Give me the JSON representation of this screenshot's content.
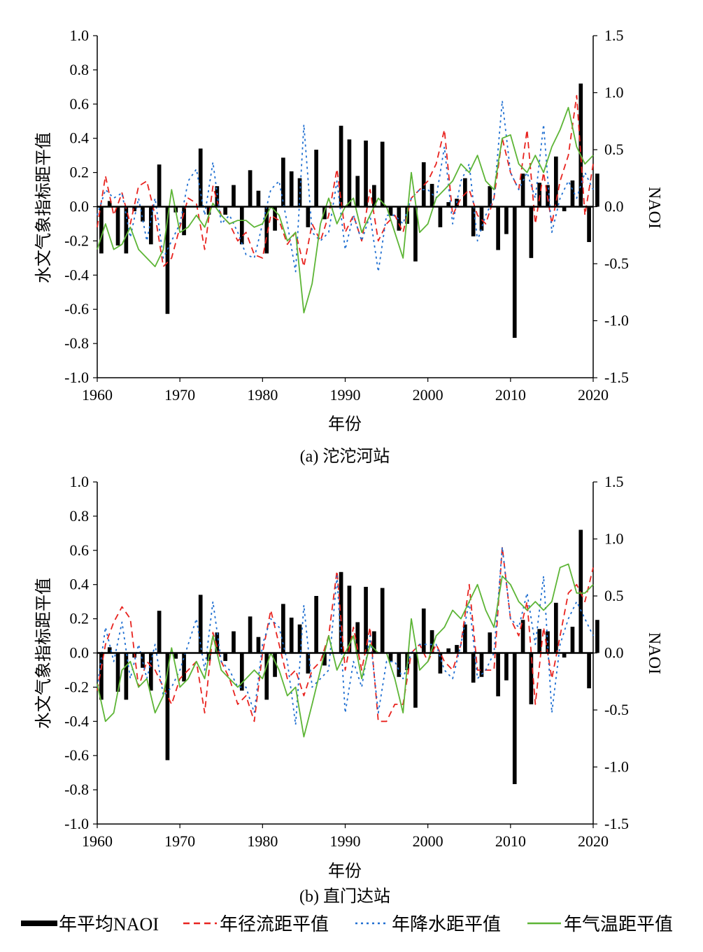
{
  "chart_data": [
    {
      "type": "bar",
      "caption": "(a) 沱沱河站",
      "xlabel": "年份",
      "ylabel": "水文气象指标距平值",
      "y2label": "NAOI",
      "xlim": [
        1960,
        2020
      ],
      "ylim": [
        -1.0,
        1.0
      ],
      "y2lim": [
        -1.5,
        1.5
      ],
      "xticks": [
        "1960",
        "1970",
        "1980",
        "1990",
        "2000",
        "2010",
        "2020"
      ],
      "yticks": [
        "1.0",
        "0.8",
        "0.6",
        "0.4",
        "0.2",
        "0.0",
        "-0.2",
        "-0.4",
        "-0.6",
        "-0.8",
        "-1.0"
      ],
      "y2ticks": [
        "1.5",
        "1.0",
        "0.5",
        "0.0",
        "-0.5",
        "-1.0",
        "-1.5"
      ],
      "grid": false,
      "x": [
        1960,
        1961,
        1962,
        1963,
        1964,
        1965,
        1966,
        1967,
        1968,
        1969,
        1970,
        1971,
        1972,
        1973,
        1974,
        1975,
        1976,
        1977,
        1978,
        1979,
        1980,
        1981,
        1982,
        1983,
        1984,
        1985,
        1986,
        1987,
        1988,
        1989,
        1990,
        1991,
        1992,
        1993,
        1994,
        1995,
        1996,
        1997,
        1998,
        1999,
        2000,
        2001,
        2002,
        2003,
        2004,
        2005,
        2006,
        2007,
        2008,
        2009,
        2010,
        2011,
        2012,
        2013,
        2014,
        2015,
        2016,
        2017,
        2018,
        2019,
        2020
      ],
      "series": [
        {
          "name": "年平均NAOI",
          "axis": "right",
          "type": "bar",
          "color": "#000000",
          "values": [
            -0.41,
            0.05,
            -0.34,
            -0.41,
            -0.04,
            -0.13,
            -0.33,
            0.37,
            -0.94,
            -0.05,
            -0.25,
            0.0,
            0.51,
            -0.07,
            0.18,
            -0.07,
            0.19,
            -0.33,
            0.32,
            0.14,
            -0.41,
            -0.21,
            0.43,
            0.31,
            0.25,
            -0.18,
            0.5,
            -0.11,
            0.0,
            0.71,
            0.59,
            0.27,
            0.58,
            0.19,
            0.57,
            -0.08,
            -0.21,
            -0.15,
            -0.48,
            0.39,
            0.2,
            -0.18,
            0.04,
            0.07,
            0.25,
            -0.26,
            -0.21,
            0.18,
            -0.38,
            -0.24,
            -1.15,
            0.29,
            -0.45,
            0.21,
            0.19,
            0.44,
            -0.04,
            0.23,
            1.08,
            -0.31,
            0.29
          ]
        },
        {
          "name": "年径流距平值",
          "axis": "left",
          "type": "line",
          "style": "dashed",
          "color": "#e8231f",
          "values": [
            -0.12,
            0.18,
            -0.05,
            0.08,
            -0.1,
            0.12,
            0.15,
            -0.05,
            -0.35,
            -0.3,
            -0.12,
            0.05,
            0.02,
            -0.25,
            0.12,
            -0.05,
            -0.1,
            -0.2,
            -0.15,
            -0.28,
            -0.3,
            -0.05,
            -0.08,
            -0.22,
            -0.15,
            -0.35,
            -0.1,
            -0.2,
            -0.05,
            0.22,
            -0.15,
            -0.05,
            -0.2,
            0.1,
            -0.2,
            -0.1,
            -0.05,
            -0.15,
            0.05,
            0.1,
            0.15,
            0.25,
            0.45,
            -0.05,
            0.05,
            0.1,
            -0.05,
            -0.1,
            0.05,
            0.4,
            0.2,
            0.1,
            0.45,
            -0.1,
            0.2,
            -0.1,
            0.15,
            0.3,
            0.65,
            -0.05,
            0.25
          ]
        },
        {
          "name": "年降水距平值",
          "axis": "left",
          "type": "line",
          "style": "dotted",
          "color": "#1f6fd1",
          "values": [
            -0.05,
            0.1,
            0.05,
            0.08,
            -0.18,
            0.05,
            -0.2,
            0.05,
            -0.3,
            -0.2,
            -0.1,
            0.15,
            0.22,
            -0.05,
            0.26,
            -0.1,
            -0.05,
            -0.15,
            -0.28,
            -0.3,
            -0.1,
            0.1,
            0.15,
            -0.1,
            -0.38,
            0.48,
            -0.15,
            -0.2,
            -0.15,
            0.15,
            -0.25,
            -0.05,
            -0.2,
            -0.05,
            -0.38,
            -0.05,
            -0.05,
            -0.1,
            0.05,
            0.1,
            0.1,
            0.05,
            0.35,
            -0.1,
            0.15,
            0.25,
            -0.2,
            -0.05,
            0.05,
            0.62,
            0.2,
            0.1,
            0.2,
            0.05,
            0.48,
            -0.15,
            0.05,
            0.15,
            0.05,
            0.2,
            0.1
          ]
        },
        {
          "name": "年气温距平值",
          "axis": "left",
          "type": "line",
          "style": "solid",
          "color": "#5db536",
          "values": [
            -0.25,
            -0.1,
            -0.25,
            -0.22,
            -0.12,
            -0.25,
            -0.3,
            -0.35,
            -0.25,
            0.1,
            -0.15,
            -0.12,
            -0.05,
            -0.12,
            0.02,
            -0.05,
            -0.1,
            -0.08,
            -0.08,
            -0.12,
            -0.1,
            0.0,
            -0.05,
            -0.2,
            -0.15,
            -0.62,
            -0.45,
            -0.1,
            0.05,
            -0.1,
            0.0,
            0.05,
            -0.15,
            -0.05,
            0.05,
            0.0,
            -0.15,
            -0.3,
            0.2,
            -0.15,
            -0.1,
            0.05,
            0.1,
            0.15,
            0.25,
            0.2,
            0.3,
            0.15,
            0.1,
            0.4,
            0.42,
            0.25,
            0.2,
            0.3,
            0.2,
            0.35,
            0.45,
            0.58,
            0.35,
            0.25,
            0.3
          ]
        }
      ]
    },
    {
      "type": "bar",
      "caption": "(b) 直门达站",
      "xlabel": "年份",
      "ylabel": "水文气象指标距平值",
      "y2label": "NAOI",
      "xlim": [
        1960,
        2020
      ],
      "ylim": [
        -1.0,
        1.0
      ],
      "y2lim": [
        -1.5,
        1.5
      ],
      "xticks": [
        "1960",
        "1970",
        "1980",
        "1990",
        "2000",
        "2010",
        "2020"
      ],
      "yticks": [
        "1.0",
        "0.8",
        "0.6",
        "0.4",
        "0.2",
        "0.0",
        "-0.2",
        "-0.4",
        "-0.6",
        "-0.8",
        "-1.0"
      ],
      "y2ticks": [
        "1.5",
        "1.0",
        "0.5",
        "0.0",
        "-0.5",
        "-1.0",
        "-1.5"
      ],
      "grid": false,
      "x": [
        1960,
        1961,
        1962,
        1963,
        1964,
        1965,
        1966,
        1967,
        1968,
        1969,
        1970,
        1971,
        1972,
        1973,
        1974,
        1975,
        1976,
        1977,
        1978,
        1979,
        1980,
        1981,
        1982,
        1983,
        1984,
        1985,
        1986,
        1987,
        1988,
        1989,
        1990,
        1991,
        1992,
        1993,
        1994,
        1995,
        1996,
        1997,
        1998,
        1999,
        2000,
        2001,
        2002,
        2003,
        2004,
        2005,
        2006,
        2007,
        2008,
        2009,
        2010,
        2011,
        2012,
        2013,
        2014,
        2015,
        2016,
        2017,
        2018,
        2019,
        2020
      ],
      "series": [
        {
          "name": "年平均NAOI",
          "axis": "right",
          "type": "bar",
          "color": "#000000",
          "values": [
            -0.41,
            0.05,
            -0.34,
            -0.41,
            -0.04,
            -0.13,
            -0.33,
            0.37,
            -0.94,
            -0.05,
            -0.25,
            0.0,
            0.51,
            -0.07,
            0.18,
            -0.07,
            0.19,
            -0.33,
            0.32,
            0.14,
            -0.41,
            -0.21,
            0.43,
            0.31,
            0.25,
            -0.18,
            0.5,
            -0.11,
            0.0,
            0.71,
            0.59,
            0.27,
            0.58,
            0.19,
            0.57,
            -0.08,
            -0.21,
            -0.15,
            -0.48,
            0.39,
            0.2,
            -0.18,
            0.04,
            0.07,
            0.25,
            -0.26,
            -0.21,
            0.18,
            -0.38,
            -0.24,
            -1.15,
            0.29,
            -0.45,
            0.21,
            0.19,
            0.44,
            -0.04,
            0.23,
            1.08,
            -0.31,
            0.29
          ]
        },
        {
          "name": "年径流距平值",
          "axis": "left",
          "type": "line",
          "style": "dashed",
          "color": "#e8231f",
          "values": [
            -0.22,
            0.05,
            0.18,
            0.27,
            0.2,
            -0.2,
            -0.05,
            -0.1,
            -0.2,
            -0.3,
            -0.15,
            -0.1,
            -0.05,
            -0.35,
            0.12,
            -0.05,
            -0.15,
            -0.3,
            -0.25,
            -0.4,
            0.0,
            0.25,
            0.05,
            -0.15,
            -0.1,
            -0.25,
            -0.1,
            -0.05,
            0.1,
            0.48,
            -0.1,
            0.15,
            -0.1,
            0.15,
            -0.4,
            -0.4,
            -0.3,
            -0.3,
            0.0,
            0.05,
            -0.05,
            0.05,
            -0.05,
            -0.1,
            0.05,
            0.4,
            -0.1,
            -0.1,
            -0.1,
            0.62,
            0.2,
            0.1,
            0.3,
            -0.3,
            0.15,
            -0.15,
            0.1,
            0.35,
            0.4,
            0.3,
            0.5
          ]
        },
        {
          "name": "年降水距平值",
          "axis": "left",
          "type": "line",
          "style": "dotted",
          "color": "#1f6fd1",
          "values": [
            -0.2,
            0.15,
            -0.05,
            0.18,
            -0.15,
            0.05,
            -0.15,
            0.05,
            -0.25,
            -0.2,
            -0.1,
            0.05,
            0.2,
            -0.1,
            0.3,
            -0.05,
            -0.1,
            -0.2,
            -0.2,
            -0.35,
            0.05,
            0.2,
            0.15,
            -0.05,
            -0.42,
            0.28,
            -0.2,
            -0.15,
            -0.1,
            0.45,
            -0.35,
            -0.05,
            -0.2,
            0.1,
            -0.35,
            -0.05,
            -0.05,
            -0.15,
            0.0,
            0.05,
            0.05,
            0.05,
            -0.1,
            -0.15,
            0.05,
            0.3,
            -0.15,
            -0.1,
            0.0,
            0.62,
            0.2,
            0.15,
            0.35,
            0.05,
            0.45,
            -0.35,
            0.05,
            0.2,
            0.3,
            0.2,
            0.1
          ]
        },
        {
          "name": "年气温距平值",
          "axis": "left",
          "type": "line",
          "style": "solid",
          "color": "#5db536",
          "values": [
            -0.18,
            -0.4,
            -0.35,
            -0.1,
            -0.05,
            -0.2,
            -0.15,
            -0.35,
            -0.25,
            0.03,
            -0.2,
            -0.15,
            -0.05,
            -0.15,
            0.1,
            -0.1,
            -0.15,
            -0.2,
            -0.15,
            -0.1,
            -0.15,
            0.0,
            -0.1,
            -0.25,
            -0.2,
            -0.49,
            -0.3,
            -0.1,
            0.1,
            -0.1,
            0.0,
            0.1,
            -0.15,
            0.05,
            0.0,
            0.0,
            -0.15,
            -0.35,
            0.2,
            -0.1,
            -0.05,
            0.1,
            0.15,
            0.25,
            0.2,
            0.3,
            0.4,
            0.25,
            0.15,
            0.45,
            0.4,
            0.3,
            0.25,
            0.3,
            0.25,
            0.3,
            0.5,
            0.52,
            0.35,
            0.35,
            0.4
          ]
        }
      ]
    }
  ],
  "legend": {
    "items": [
      {
        "label": "年平均NAOI",
        "style": "bar",
        "color": "#000000"
      },
      {
        "label": "年径流距平值",
        "style": "dashed",
        "color": "#e8231f"
      },
      {
        "label": "年降水距平值",
        "style": "dotted",
        "color": "#1f6fd1"
      },
      {
        "label": "年气温距平值",
        "style": "solid",
        "color": "#5db536"
      }
    ]
  }
}
